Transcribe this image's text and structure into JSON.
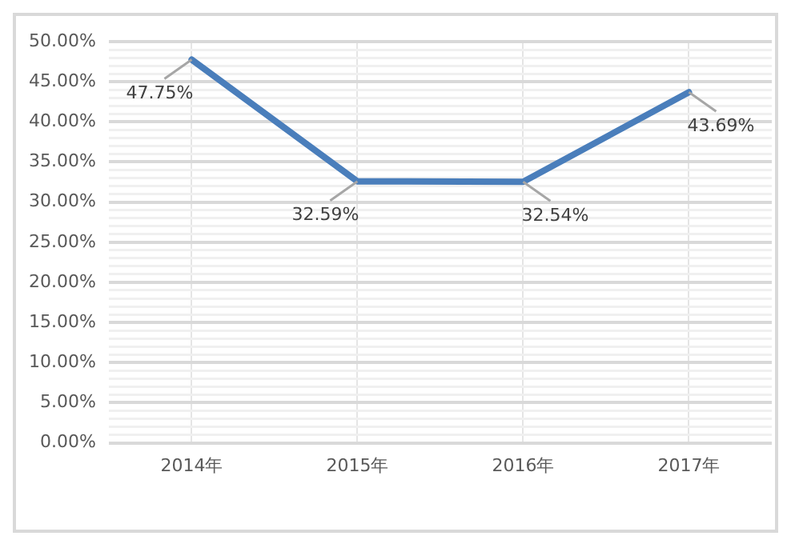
{
  "chart_data": {
    "type": "line",
    "categories": [
      "2014年",
      "2015年",
      "2016年",
      "2017年"
    ],
    "series": [
      {
        "color": "#4a7ebb",
        "values": [
          47.75,
          32.59,
          32.54,
          43.69
        ],
        "value_labels": [
          "47.75%",
          "32.59%",
          "32.54%",
          "43.69%"
        ]
      }
    ],
    "ylim": [
      0,
      50
    ],
    "yticks": [
      {
        "value": 0,
        "label": "0.00%"
      },
      {
        "value": 1,
        "label": null
      },
      {
        "value": 2,
        "label": null
      },
      {
        "value": 3,
        "label": null
      },
      {
        "value": 4,
        "label": null
      },
      {
        "value": 5,
        "label": "5.00%"
      },
      {
        "value": 6,
        "label": null
      },
      {
        "value": 7,
        "label": null
      },
      {
        "value": 8,
        "label": null
      },
      {
        "value": 9,
        "label": null
      },
      {
        "value": 10,
        "label": "10.00%"
      },
      {
        "value": 11,
        "label": null
      },
      {
        "value": 12,
        "label": null
      },
      {
        "value": 13,
        "label": null
      },
      {
        "value": 14,
        "label": null
      },
      {
        "value": 15,
        "label": "15.00%"
      },
      {
        "value": 16,
        "label": null
      },
      {
        "value": 17,
        "label": null
      },
      {
        "value": 18,
        "label": null
      },
      {
        "value": 19,
        "label": null
      },
      {
        "value": 20,
        "label": "20.00%"
      },
      {
        "value": 21,
        "label": null
      },
      {
        "value": 22,
        "label": null
      },
      {
        "value": 23,
        "label": null
      },
      {
        "value": 24,
        "label": null
      },
      {
        "value": 25,
        "label": "25.00%"
      },
      {
        "value": 26,
        "label": null
      },
      {
        "value": 27,
        "label": null
      },
      {
        "value": 28,
        "label": null
      },
      {
        "value": 29,
        "label": null
      },
      {
        "value": 30,
        "label": "30.00%"
      },
      {
        "value": 31,
        "label": null
      },
      {
        "value": 32,
        "label": null
      },
      {
        "value": 33,
        "label": null
      },
      {
        "value": 34,
        "label": null
      },
      {
        "value": 35,
        "label": "35.00%"
      },
      {
        "value": 36,
        "label": null
      },
      {
        "value": 37,
        "label": null
      },
      {
        "value": 38,
        "label": null
      },
      {
        "value": 39,
        "label": null
      },
      {
        "value": 40,
        "label": "40.00%"
      },
      {
        "value": 41,
        "label": null
      },
      {
        "value": 42,
        "label": null
      },
      {
        "value": 43,
        "label": null
      },
      {
        "value": 44,
        "label": null
      },
      {
        "value": 45,
        "label": "45.00%"
      },
      {
        "value": 46,
        "label": null
      },
      {
        "value": 47,
        "label": null
      },
      {
        "value": 48,
        "label": null
      },
      {
        "value": 49,
        "label": null
      },
      {
        "value": 50,
        "label": "50.00%"
      }
    ],
    "grid": true,
    "legend": false,
    "marker": "none",
    "line_style": "solid"
  }
}
